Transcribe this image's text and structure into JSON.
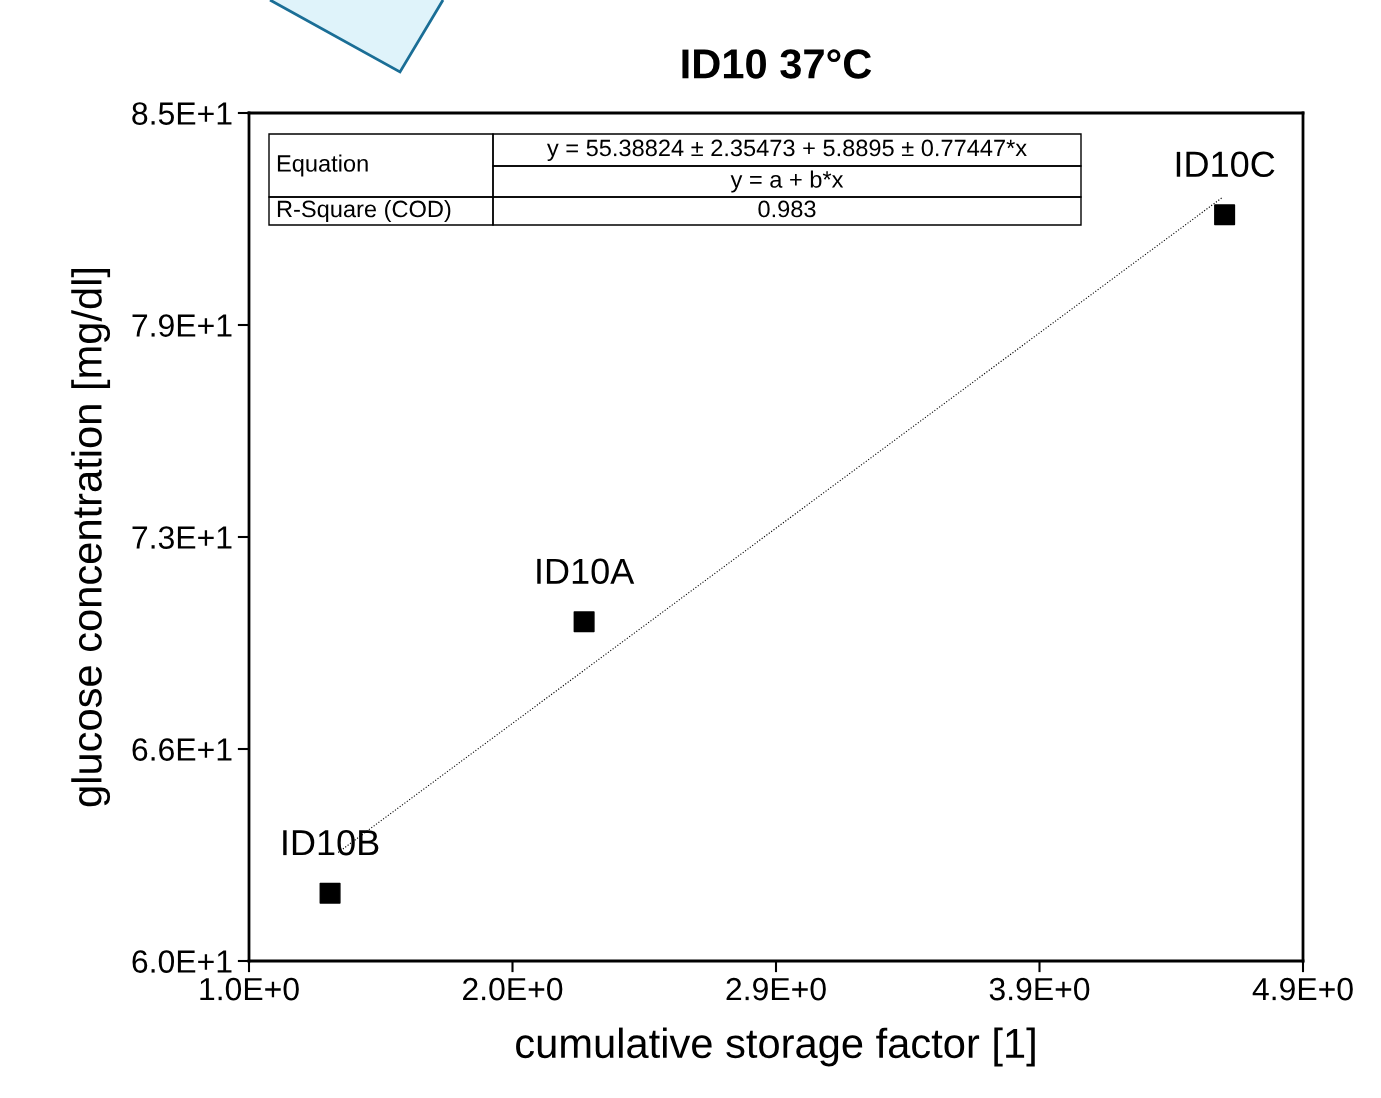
{
  "chart_data": {
    "type": "scatter",
    "title": "ID10 37°C",
    "xlabel": "cumulative storage factor [1]",
    "ylabel": "glucose concentration [mg/dl]",
    "xlim": [
      1.0,
      4.9
    ],
    "xticks": [
      {
        "value": 1.0,
        "label": "1.0E+0"
      },
      {
        "value": 1.975,
        "label": "2.0E+0"
      },
      {
        "value": 2.95,
        "label": "2.9E+0"
      },
      {
        "value": 3.925,
        "label": "3.9E+0"
      },
      {
        "value": 4.9,
        "label": "4.9E+0"
      }
    ],
    "ylim": [
      60,
      85
    ],
    "yticks": [
      {
        "value": 60,
        "label": "6.0E+1"
      },
      {
        "value": 66.25,
        "label": "6.6E+1"
      },
      {
        "value": 72.5,
        "label": "7.3E+1"
      },
      {
        "value": 78.75,
        "label": "7.9E+1"
      },
      {
        "value": 85,
        "label": "8.5E+1"
      }
    ],
    "marker": "square",
    "grid": false,
    "legend": false,
    "series": [
      {
        "color": "#000000",
        "x": [
          2.24,
          1.3,
          4.61
        ],
        "values": [
          70.0,
          62.0,
          82.0
        ]
      },
      {
        "type": "line",
        "color": "#000000",
        "line_style": "dotted",
        "marker": "none",
        "x": [
          1.33,
          4.6
        ],
        "values": [
          63.2,
          82.5
        ]
      }
    ],
    "annotations": [
      "Equation",
      "y = 55.38824 ± 2.35473 + 5.8895 ± 0.77447*x",
      "y = a + b*x",
      "R-Square (COD)",
      "0.983",
      {
        "text": "ID10A",
        "x": 2.24,
        "y": 70.0
      },
      {
        "text": "ID10B",
        "x": 1.3,
        "y": 62.0
      },
      {
        "text": "ID10C",
        "x": 4.61,
        "y": 82.0
      }
    ]
  }
}
